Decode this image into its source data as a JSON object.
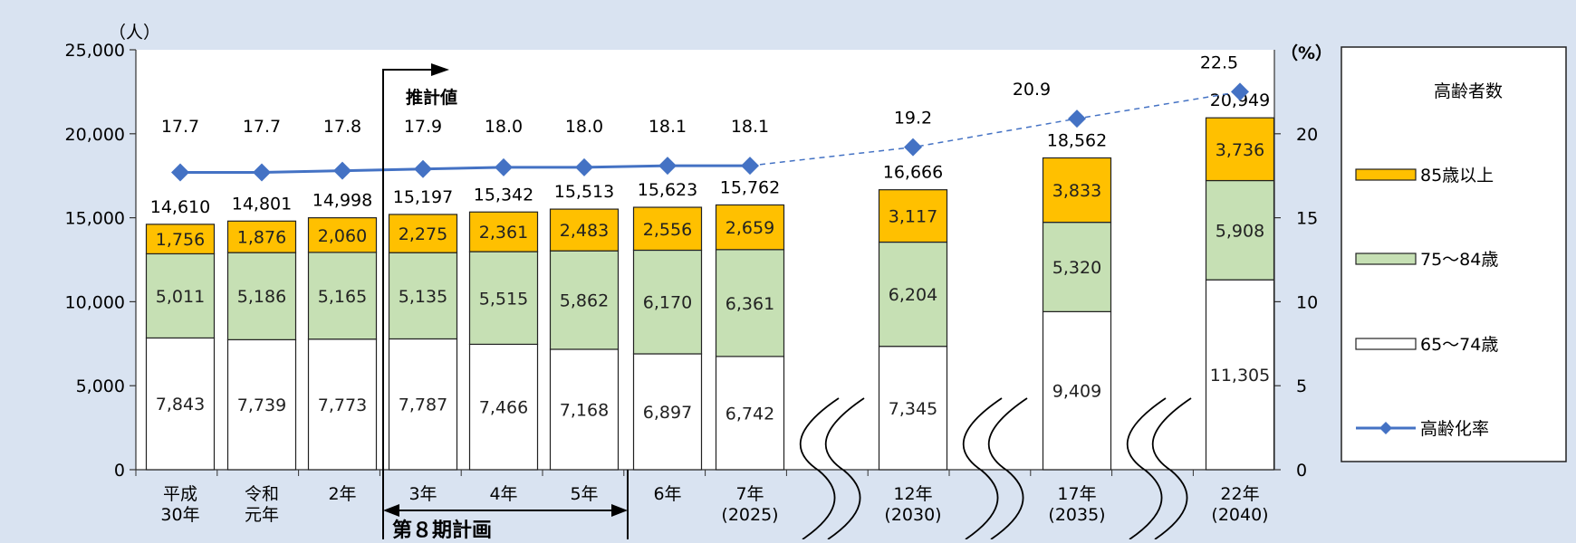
{
  "chart_data": {
    "type": "bar",
    "stacked": true,
    "secondary_line": true,
    "y_left_label": "（人）",
    "y_right_label": "（%）",
    "ylim_left": [
      0,
      25000
    ],
    "ylim_right": [
      0,
      25
    ],
    "y_left_ticks": [
      "0",
      "5,000",
      "10,000",
      "15,000",
      "20,000",
      "25,000"
    ],
    "y_right_ticks": [
      "0",
      "5",
      "10",
      "15",
      "20"
    ],
    "categories": [
      [
        "平成",
        "30年"
      ],
      [
        "令和",
        "元年"
      ],
      [
        "2年"
      ],
      [
        "3年"
      ],
      [
        "4年"
      ],
      [
        "5年"
      ],
      [
        "6年"
      ],
      [
        "7年",
        "(2025)"
      ],
      [
        "12年",
        "(2030)"
      ],
      [
        "17年",
        "(2035)"
      ],
      [
        "22年",
        "(2040)"
      ]
    ],
    "series": [
      {
        "name": "65～74歳",
        "color": "#ffffff",
        "values": [
          7843,
          7739,
          7773,
          7787,
          7466,
          7168,
          6897,
          6742,
          7345,
          9409,
          11305
        ],
        "labels": [
          "7,843",
          "7,739",
          "7,773",
          "7,787",
          "7,466",
          "7,168",
          "6,897",
          "6,742",
          "7,345",
          "9,409",
          "11,305"
        ]
      },
      {
        "name": "75～84歳",
        "color": "#c6e0b4",
        "values": [
          5011,
          5186,
          5165,
          5135,
          5515,
          5862,
          6170,
          6361,
          6204,
          5320,
          5908
        ],
        "labels": [
          "5,011",
          "5,186",
          "5,165",
          "5,135",
          "5,515",
          "5,862",
          "6,170",
          "6,361",
          "6,204",
          "5,320",
          "5,908"
        ]
      },
      {
        "name": "85歳以上",
        "color": "#ffc000",
        "values": [
          1756,
          1876,
          2060,
          2275,
          2361,
          2483,
          2556,
          2659,
          3117,
          3833,
          3736
        ],
        "labels": [
          "1,756",
          "1,876",
          "2,060",
          "2,275",
          "2,361",
          "2,483",
          "2,556",
          "2,659",
          "3,117",
          "3,833",
          "3,736"
        ]
      }
    ],
    "totals": [
      14610,
      14801,
      14998,
      15197,
      15342,
      15513,
      15623,
      15762,
      16666,
      18562,
      20949
    ],
    "total_labels": [
      "14,610",
      "14,801",
      "14,998",
      "15,197",
      "15,342",
      "15,513",
      "15,623",
      "15,762",
      "16,666",
      "18,562",
      "20,949"
    ],
    "rate": {
      "name": "高齢化率",
      "color": "#4472c4",
      "values": [
        17.7,
        17.7,
        17.8,
        17.9,
        18.0,
        18.0,
        18.1,
        18.1,
        19.2,
        20.9,
        22.5
      ],
      "labels": [
        "17.7",
        "17.7",
        "17.8",
        "17.9",
        "18.0",
        "18.0",
        "18.1",
        "18.1",
        "19.2",
        "20.9",
        "22.5"
      ],
      "projected_from_index": 7
    },
    "legend_title": "高齢者数",
    "legend_placement": "right",
    "annotations": {
      "projection": "推計値",
      "plan_period": "第８期計画"
    }
  }
}
